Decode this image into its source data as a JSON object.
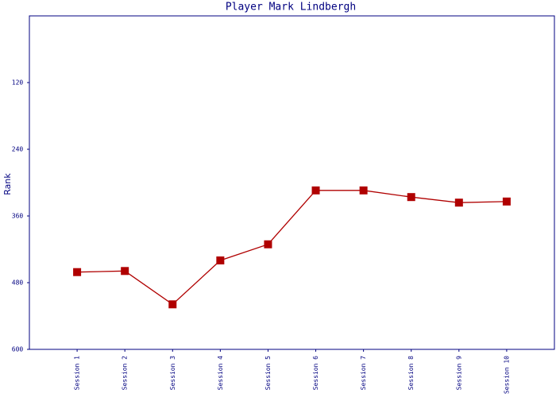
{
  "chart_data": {
    "type": "line",
    "title": "Player Mark Lindbergh",
    "y_label": "Rank",
    "categories": [
      "Session 1",
      "Session 2",
      "Session 3",
      "Session 4",
      "Session 5",
      "Session 6",
      "Session 7",
      "Session 8",
      "Session 9",
      "Session 10"
    ],
    "series": [
      {
        "name": "Rank",
        "color": "#b00000",
        "values": [
          461,
          459,
          519,
          440,
          411,
          314,
          314,
          326,
          336,
          334
        ]
      }
    ],
    "ylim": [
      0,
      600
    ],
    "yticks": [
      120,
      240,
      360,
      480,
      600
    ],
    "y_reversed": true,
    "grid": false,
    "legend": false
  }
}
